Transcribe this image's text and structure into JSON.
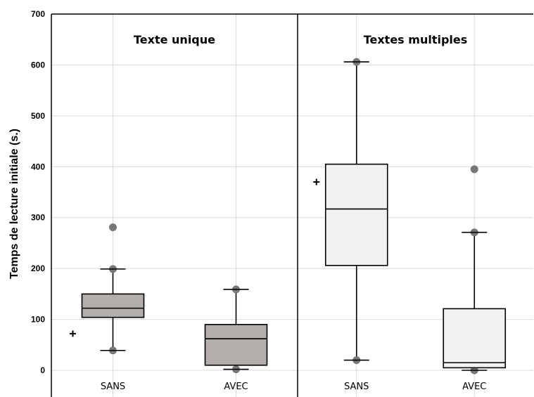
{
  "chart_data": {
    "type": "boxplot",
    "ylabel": "Temps de lecture initiale (s.)",
    "ylim": [
      0,
      700
    ],
    "yticks": [
      0,
      100,
      200,
      300,
      400,
      500,
      600,
      700
    ],
    "grid": true,
    "panels": [
      {
        "title": "Texte unique",
        "fill": "#b3aeab",
        "categories": [
          "SANS",
          "AVEC"
        ],
        "boxes": [
          {
            "whisker_low": 39,
            "q1": 104,
            "median": 122,
            "q3": 150,
            "whisker_high": 199,
            "mean": 72,
            "outliers": [
              281
            ]
          },
          {
            "whisker_low": 2,
            "q1": 10,
            "median": 62,
            "q3": 90,
            "whisker_high": 159,
            "outliers": []
          }
        ]
      },
      {
        "title": "Textes multiples",
        "fill": "#f1f1f1",
        "categories": [
          "SANS",
          "AVEC"
        ],
        "boxes": [
          {
            "whisker_low": 20,
            "q1": 206,
            "median": 317,
            "q3": 405,
            "whisker_high": 606,
            "mean": 370,
            "outliers": []
          },
          {
            "whisker_low": 0,
            "q1": 5,
            "median": 15,
            "q3": 121,
            "whisker_high": 271,
            "outliers": [
              395
            ]
          }
        ]
      }
    ]
  }
}
